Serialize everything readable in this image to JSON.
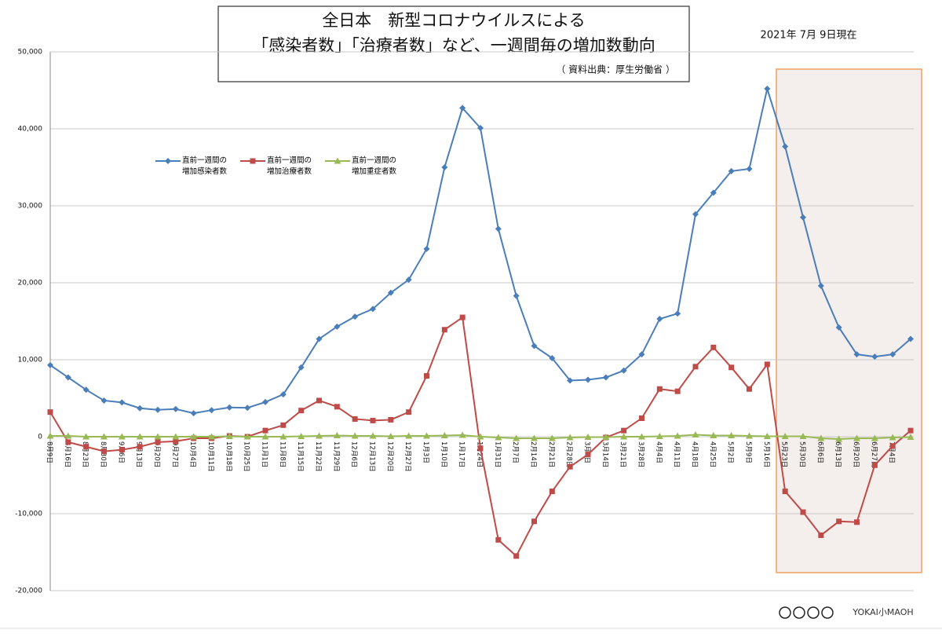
{
  "chart_data": {
    "type": "line",
    "title_lines": [
      "全日本　新型コロナウイルスによる",
      "「感染者数」「治療者数」など、一週間毎の増加数動向",
      "（ 資料出典：厚生労働省 ）"
    ],
    "date_note": "2021年 7月 9日現在",
    "footer": "YOKAI小MAOH",
    "categories": [
      "8月9日",
      "8月16日",
      "8月23日",
      "8月30日",
      "9月6日",
      "9月13日",
      "9月20日",
      "9月27日",
      "10月4日",
      "10月11日",
      "10月18日",
      "10月25日",
      "11月1日",
      "11月8日",
      "11月15日",
      "11月22日",
      "11月29日",
      "12月6日",
      "12月13日",
      "12月20日",
      "12月27日",
      "1月3日",
      "1月10日",
      "1月17日",
      "1月24日",
      "1月31日",
      "2月7日",
      "2月14日",
      "2月21日",
      "2月28日",
      "3月7日",
      "3月14日",
      "3月21日",
      "3月28日",
      "4月4日",
      "4月11日",
      "4月18日",
      "4月25日",
      "5月2日",
      "5月9日",
      "5月16日",
      "5月23日",
      "5月30日",
      "6月6日",
      "6月13日",
      "6月20日",
      "6月27日",
      "7月4日",
      null
    ],
    "series": [
      {
        "name": "直前一週間の増加感染者数",
        "color": "#4a7ebb",
        "marker": "diamond",
        "values": [
          9300,
          7700,
          6100,
          4700,
          4450,
          3700,
          3500,
          3600,
          3050,
          3450,
          3800,
          3750,
          4500,
          5500,
          9000,
          12700,
          14300,
          15600,
          16600,
          18700,
          20400,
          24400,
          35000,
          42700,
          40100,
          27000,
          18300,
          11800,
          10200,
          7300,
          7400,
          7700,
          8600,
          10700,
          15300,
          16000,
          28900,
          31700,
          34500,
          34800,
          45200,
          37700,
          28500,
          19600,
          14200,
          10700,
          10400,
          10700,
          12700
        ]
      },
      {
        "name": "直前一週間の増加治療者数",
        "color": "#be4b48",
        "marker": "square",
        "values": [
          3200,
          -700,
          -1300,
          -1900,
          -1700,
          -1300,
          -700,
          -600,
          -200,
          -200,
          100,
          0,
          800,
          1500,
          3400,
          4700,
          3900,
          2300,
          2100,
          2200,
          3200,
          7900,
          13900,
          15500,
          -1500,
          -13400,
          -15500,
          -11000,
          -7100,
          -3900,
          -2300,
          -100,
          800,
          2400,
          6200,
          5900,
          9100,
          11600,
          9000,
          6200,
          9400,
          -7100,
          -9800,
          -12800,
          -11000,
          -11100,
          -3700,
          -1200,
          800
        ]
      },
      {
        "name": "直前一週間の増加重症者数",
        "color": "#98b954",
        "marker": "triangle",
        "values": [
          100,
          100,
          0,
          0,
          0,
          0,
          0,
          0,
          0,
          0,
          50,
          0,
          0,
          0,
          50,
          100,
          150,
          100,
          100,
          50,
          100,
          100,
          150,
          200,
          0,
          -100,
          -200,
          -200,
          -200,
          -100,
          -50,
          -50,
          0,
          0,
          50,
          100,
          250,
          150,
          150,
          100,
          50,
          50,
          50,
          -200,
          -300,
          -200,
          -200,
          -100,
          -50
        ]
      }
    ],
    "ylim": [
      -20000,
      50000
    ],
    "yticks": [
      {
        "value": -20000,
        "label": "-20,000"
      },
      {
        "value": -10000,
        "label": "-10,000"
      },
      0,
      {
        "value": 10000,
        "label": "10,000"
      },
      {
        "value": 20000,
        "label": "20,000"
      },
      {
        "value": 30000,
        "label": "30,000"
      },
      {
        "value": 40000,
        "label": "40,000"
      },
      {
        "value": 50000,
        "label": "50,000"
      }
    ],
    "grid": true
  }
}
